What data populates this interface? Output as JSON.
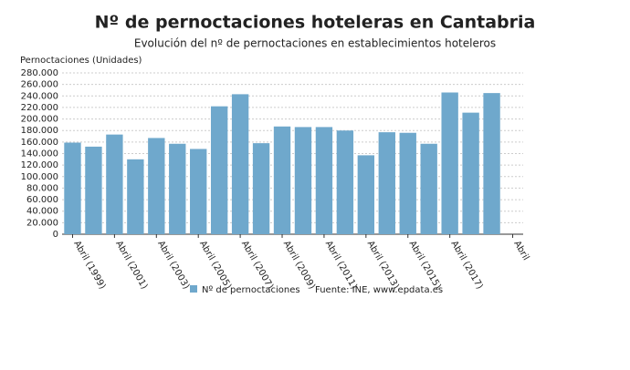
{
  "chart_data": {
    "type": "bar",
    "title": "Nº de pernoctaciones hoteleras en Cantabria",
    "subtitle": "Evolución del nº de pernoctaciones en establecimientos hoteleros",
    "y_label": "Pernoctaciones (Unidades)",
    "source": "Fuente: INE, www.epdata.es",
    "categories": [
      "Abril (1999)",
      null,
      "Abril (2001)",
      null,
      "Abril (2003)",
      null,
      "Abril (2005)",
      null,
      "Abril (2007)",
      null,
      "Abril (2009)",
      null,
      "Abril (2011)",
      null,
      "Abril (2013)",
      null,
      "Abril (2015)",
      null,
      "Abril (2017)",
      null,
      null,
      "Abril"
    ],
    "series": [
      {
        "name": "Nº de pernoctaciones",
        "color": "#6fa8cc",
        "values": [
          159000,
          152000,
          173000,
          130000,
          167000,
          157000,
          148000,
          222000,
          243000,
          158000,
          187000,
          186000,
          186000,
          180000,
          137000,
          177000,
          176000,
          157000,
          246000,
          211000,
          245000,
          null
        ]
      }
    ],
    "ylim": [
      0,
      280000
    ],
    "yticks": [
      0,
      {
        "value": 20000,
        "label": "20.000"
      },
      {
        "value": 40000,
        "label": "40.000"
      },
      {
        "value": 60000,
        "label": "60.000"
      },
      {
        "value": 80000,
        "label": "80.000"
      },
      {
        "value": 100000,
        "label": "100.000"
      },
      {
        "value": 120000,
        "label": "120.000"
      },
      {
        "value": 140000,
        "label": "140.000"
      },
      {
        "value": 160000,
        "label": "160.000"
      },
      {
        "value": 180000,
        "label": "180.000"
      },
      {
        "value": 200000,
        "label": "200.000"
      },
      {
        "value": 220000,
        "label": "220.000"
      },
      {
        "value": 240000,
        "label": "240.000"
      },
      {
        "value": 260000,
        "label": "260.000"
      },
      {
        "value": 280000,
        "label": "280.000"
      }
    ],
    "grid": true
  }
}
